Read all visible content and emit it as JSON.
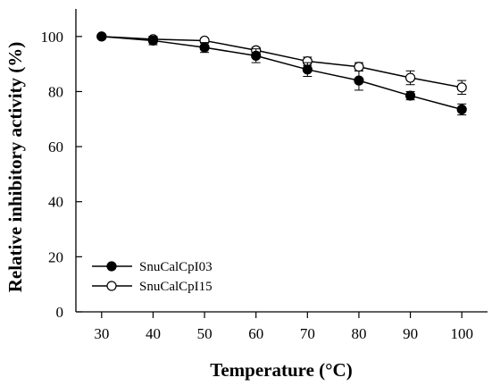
{
  "chart_data": {
    "type": "line",
    "title": "",
    "xlabel": "Temperature (°C)",
    "ylabel": "Relative inhibitory activity (%)",
    "x": [
      30,
      40,
      50,
      60,
      70,
      80,
      90,
      100
    ],
    "xlim": [
      25,
      105
    ],
    "ylim": [
      0,
      110
    ],
    "xticks": [
      "30",
      "40",
      "50",
      "60",
      "70",
      "80",
      "90",
      "100"
    ],
    "yticks": [
      "0",
      "20",
      "40",
      "60",
      "80",
      "100"
    ],
    "grid": false,
    "legend_position": "bottom-left",
    "series": [
      {
        "name": "SnuCalCpI03",
        "marker": "filled-circle",
        "color": "#000000",
        "values": [
          100,
          98.5,
          96,
          93,
          88,
          84,
          78.5,
          73.5
        ],
        "errors": [
          0.5,
          1.5,
          1.8,
          2.5,
          2.5,
          3.5,
          1.5,
          2.0
        ]
      },
      {
        "name": "SnuCalCpI15",
        "marker": "open-circle",
        "color": "#000000",
        "values": [
          100,
          99,
          98.5,
          95,
          91,
          89,
          85,
          81.5
        ],
        "errors": [
          0.5,
          1.0,
          0.8,
          1.0,
          1.5,
          1.5,
          2.5,
          2.5
        ]
      }
    ]
  }
}
